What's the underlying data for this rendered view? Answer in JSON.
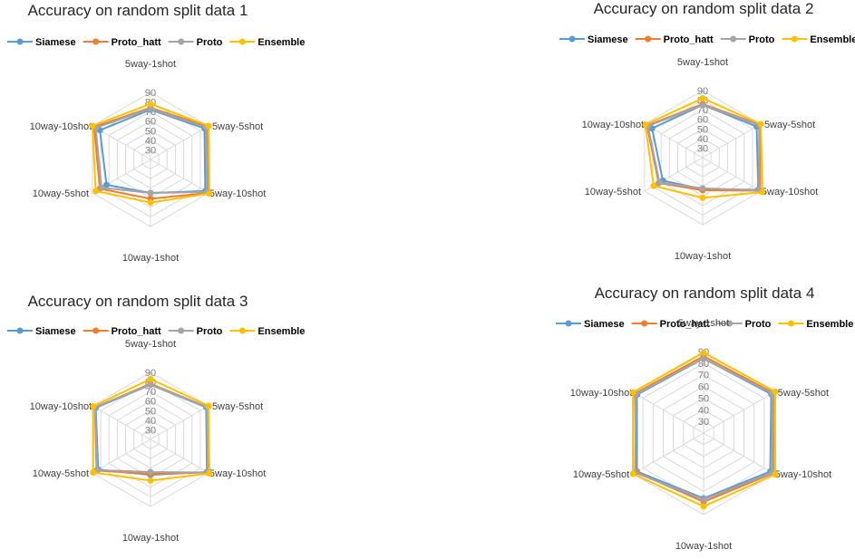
{
  "chart_data": [
    {
      "type": "radar",
      "title": "Accuracy on random split data 1",
      "categories": [
        "5way-1shot",
        "5way-5shot",
        "5way-10shot",
        "10way-1shot",
        "10way-5shot",
        "10way-10shot"
      ],
      "rticks": [
        30,
        40,
        50,
        60,
        70,
        80,
        90
      ],
      "rlim": [
        20,
        90
      ],
      "grid": true,
      "legend": "top",
      "series": [
        {
          "name": "Siamese",
          "color": "#5B9BD5",
          "values": [
            72,
            85,
            86,
            55,
            73,
            81
          ]
        },
        {
          "name": "Proto_hatt",
          "color": "#ED7D31",
          "values": [
            74,
            89,
            90,
            61,
            81,
            88
          ]
        },
        {
          "name": "Proto",
          "color": "#A5A5A5",
          "values": [
            73,
            87,
            88,
            55,
            79,
            86
          ]
        },
        {
          "name": "Ensemble",
          "color": "#FFC000",
          "values": [
            78,
            90,
            91,
            65,
            86,
            90
          ]
        }
      ]
    },
    {
      "type": "radar",
      "title": "Accuracy on random split data 2",
      "categories": [
        "5way-1shot",
        "5way-5shot",
        "5way-10shot",
        "10way-1shot",
        "10way-5shot",
        "10way-10shot"
      ],
      "rticks": [
        30,
        40,
        50,
        60,
        70,
        80,
        90
      ],
      "rlim": [
        20,
        90
      ],
      "grid": true,
      "legend": "top",
      "series": [
        {
          "name": "Siamese",
          "color": "#5B9BD5",
          "values": [
            75,
            85,
            87,
            53,
            68,
            81
          ]
        },
        {
          "name": "Proto_hatt",
          "color": "#ED7D31",
          "values": [
            76,
            89,
            89,
            54,
            73,
            87
          ]
        },
        {
          "name": "Proto",
          "color": "#A5A5A5",
          "values": [
            75,
            88,
            88,
            52,
            72,
            86
          ]
        },
        {
          "name": "Ensemble",
          "color": "#FFC000",
          "values": [
            82,
            90,
            92,
            62,
            79,
            89
          ]
        }
      ]
    },
    {
      "type": "radar",
      "title": "Accuracy on random split data 3",
      "categories": [
        "5way-1shot",
        "5way-5shot",
        "5way-10shot",
        "10way-1shot",
        "10way-5shot",
        "10way-10shot"
      ],
      "rticks": [
        30,
        40,
        50,
        60,
        70,
        80,
        90
      ],
      "rlim": [
        20,
        90
      ],
      "grid": true,
      "legend": "top",
      "series": [
        {
          "name": "Siamese",
          "color": "#5B9BD5",
          "values": [
            77,
            87,
            88,
            57,
            83,
            86
          ]
        },
        {
          "name": "Proto_hatt",
          "color": "#ED7D31",
          "values": [
            78,
            88,
            89,
            56,
            85,
            87
          ]
        },
        {
          "name": "Proto",
          "color": "#A5A5A5",
          "values": [
            77,
            88,
            89,
            54,
            84,
            87
          ]
        },
        {
          "name": "Ensemble",
          "color": "#FFC000",
          "values": [
            83,
            90,
            91,
            63,
            89,
            89
          ]
        }
      ]
    },
    {
      "type": "radar",
      "title": "Accuracy on random split data 4",
      "categories": [
        "5way-1shot",
        "5way-5shot",
        "5way-10shot",
        "10way-1shot",
        "10way-5shot",
        "10way-10shot"
      ],
      "rticks": [
        30,
        40,
        50,
        60,
        70,
        80,
        90
      ],
      "rlim": [
        20,
        90
      ],
      "grid": true,
      "legend": "top",
      "series": [
        {
          "name": "Siamese",
          "color": "#5B9BD5",
          "values": [
            84,
            87,
            86,
            76,
            86,
            86
          ]
        },
        {
          "name": "Proto_hatt",
          "color": "#ED7D31",
          "values": [
            86,
            89,
            89,
            79,
            87,
            88
          ]
        },
        {
          "name": "Proto",
          "color": "#A5A5A5",
          "values": [
            84,
            88,
            88,
            77,
            88,
            87
          ]
        },
        {
          "name": "Ensemble",
          "color": "#FFC000",
          "values": [
            89,
            91,
            91,
            83,
            90,
            90
          ]
        }
      ]
    }
  ]
}
